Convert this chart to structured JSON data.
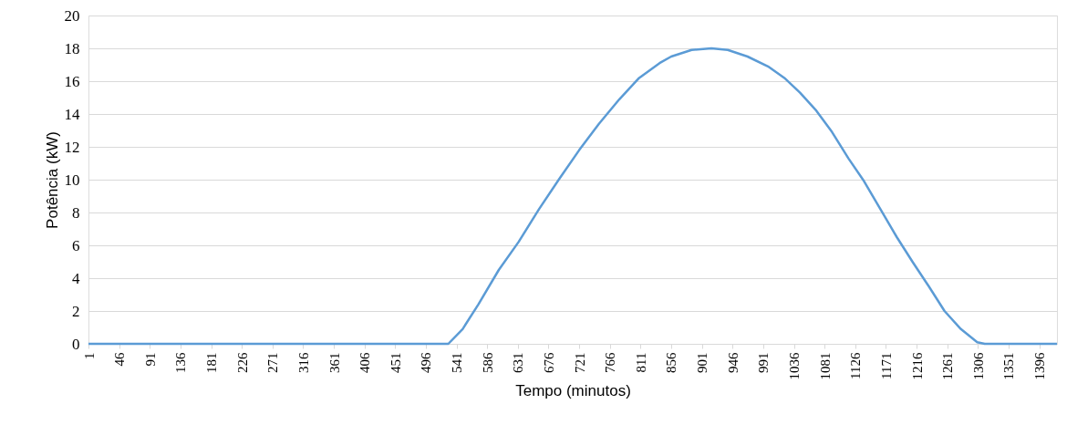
{
  "chart_data": {
    "type": "line",
    "xlabel": "Tempo (minutos)",
    "ylabel": "Potência (kW)",
    "x": [
      1,
      529,
      550,
      573,
      603,
      632,
      662,
      691,
      721,
      750,
      780,
      809,
      839,
      856,
      886,
      915,
      939,
      968,
      998,
      1022,
      1045,
      1069,
      1092,
      1116,
      1139,
      1163,
      1187,
      1210,
      1234,
      1257,
      1281,
      1305,
      1316,
      1422
    ],
    "series": [
      {
        "color": "#5b9bd5",
        "values": [
          0,
          0,
          0.9,
          2.4,
          4.5,
          6.2,
          8.2,
          10.0,
          11.8,
          13.4,
          14.9,
          16.2,
          17.1,
          17.5,
          17.9,
          18.0,
          17.9,
          17.5,
          16.9,
          16.2,
          15.3,
          14.2,
          12.9,
          11.3,
          9.9,
          8.2,
          6.5,
          5.0,
          3.5,
          2.0,
          0.9,
          0.1,
          0,
          0
        ]
      }
    ],
    "xlim": [
      1,
      1422
    ],
    "xticks": [
      1,
      46,
      91,
      136,
      181,
      226,
      271,
      316,
      361,
      406,
      451,
      496,
      541,
      586,
      631,
      676,
      721,
      766,
      811,
      856,
      901,
      946,
      991,
      1036,
      1081,
      1126,
      1171,
      1216,
      1261,
      1306,
      1351,
      1396
    ],
    "ylim": [
      0,
      20
    ],
    "yticks": [
      0,
      2,
      4,
      6,
      8,
      10,
      12,
      14,
      16,
      18,
      20
    ],
    "grid": "y",
    "marker": "none",
    "line_style": "solid"
  }
}
